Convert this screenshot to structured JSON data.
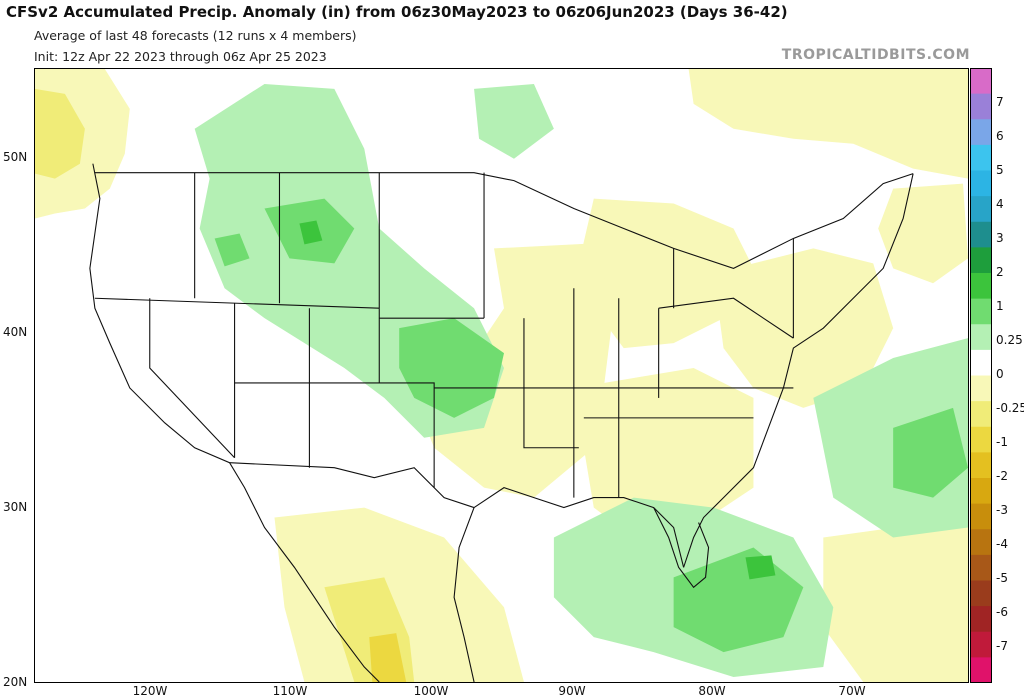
{
  "header": {
    "title": "CFSv2 Accumulated Precip. Anomaly (in) from 06z30May2023 to 06z06Jun2023 (Days 36-42)",
    "subtitle_1": "Average of last 48 forecasts (12 runs x 4 members)",
    "subtitle_2": "Init: 12z Apr 22 2023 through 06z Apr 25 2023",
    "brand": "TROPICALTIDBITS.COM"
  },
  "map": {
    "lat_labels": [
      "50N",
      "40N",
      "30N",
      "20N"
    ],
    "lon_labels": [
      "120W",
      "110W",
      "100W",
      "90W",
      "80W",
      "70W"
    ]
  },
  "colorbar": {
    "unit": "in",
    "labels": [
      "7",
      "6",
      "5",
      "4",
      "3",
      "2",
      "1",
      "0.25",
      "0",
      "-0.25",
      "-1",
      "-2",
      "-3",
      "-4",
      "-5",
      "-6",
      "-7"
    ],
    "colors": [
      "#d86bc8",
      "#9a80d8",
      "#7aa6e8",
      "#3cc4ee",
      "#2cb4e4",
      "#28a4c8",
      "#1e8e8e",
      "#1e9e3c",
      "#3cc43c",
      "#70dc70",
      "#b4f0b4",
      "#ffffff",
      "#f8f8b8",
      "#f0ec78",
      "#ecd840",
      "#e4c020",
      "#d8a810",
      "#c88e0c",
      "#b87410",
      "#a85818",
      "#9a3c1c",
      "#a02424",
      "#c01a3a",
      "#e0126a"
    ],
    "color_meaning": "green = wetter than normal, yellow/brown = drier than normal"
  },
  "anomaly_features": [
    {
      "region": "Northern Rockies / Montana",
      "category": "wet",
      "level": "0.25 to 1 in, locally 1 to 2 in"
    },
    {
      "region": "Pacific Northwest coast",
      "category": "dry",
      "level": "-0.25 to -1 in"
    },
    {
      "region": "Central / Southern Plains",
      "category": "wet",
      "level": "0.25 to 1 in"
    },
    {
      "region": "Florida, Bahamas and western Atlantic",
      "category": "wet",
      "level": "0.25 to 1 in, locally 1 to 2 in"
    },
    {
      "region": "Mexico west of the Sierra Madre",
      "category": "dry",
      "level": "-0.25 to -2 in"
    },
    {
      "region": "Gulf Coast, Ohio Valley and Northeast",
      "category": "dry",
      "level": "0 to -0.25 in"
    }
  ]
}
